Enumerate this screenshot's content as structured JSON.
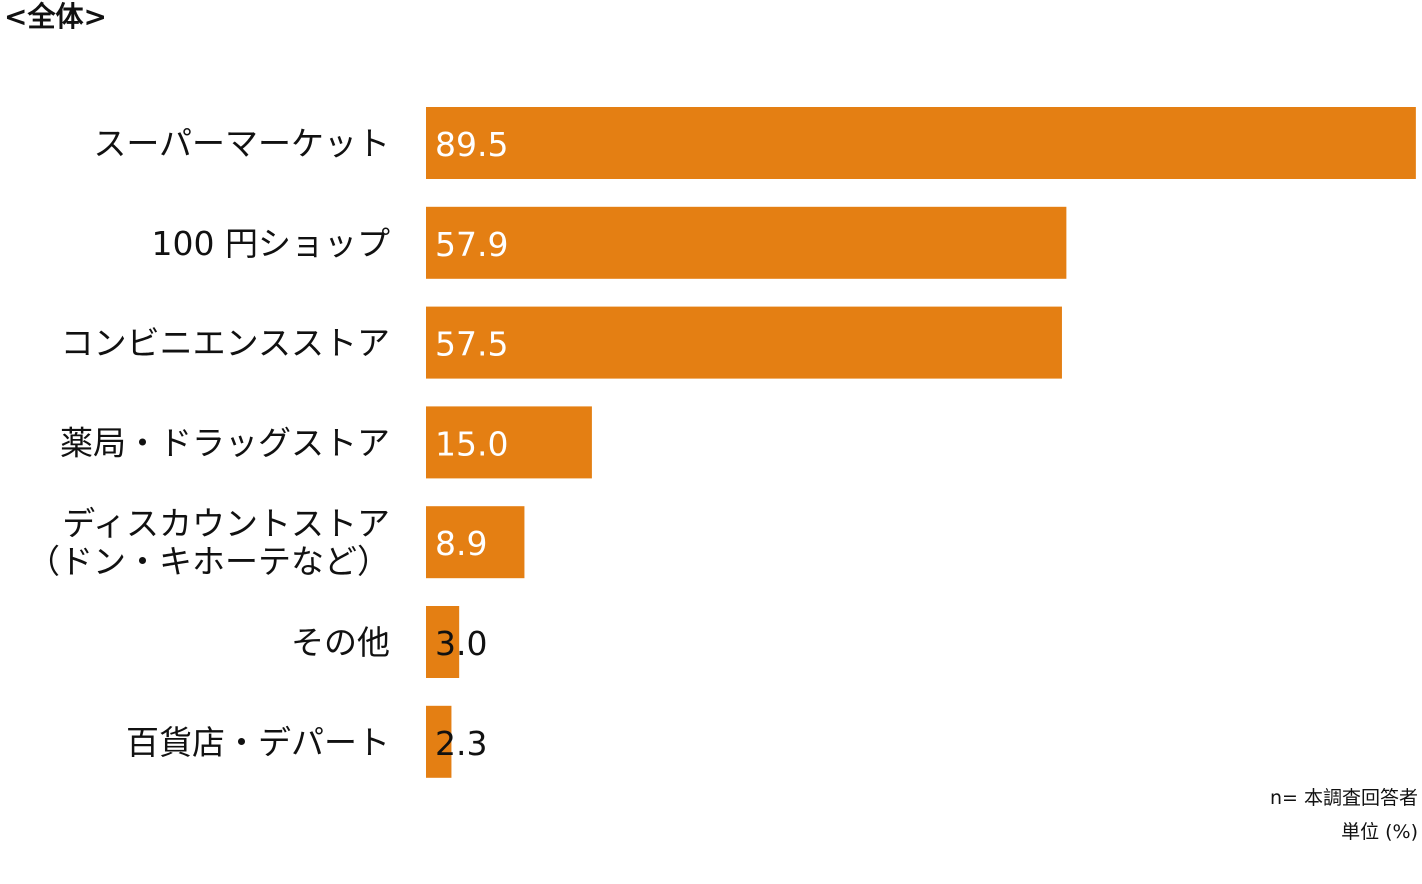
{
  "title": "<全体>",
  "notes": {
    "sample": "n= 本調査回答者",
    "unit": "単位 (%)"
  },
  "colors": {
    "bar": "#E47F13",
    "label_inside": "#ffffff",
    "label_outside": "#111111",
    "category_text": "#111111"
  },
  "chart_data": {
    "type": "bar",
    "orientation": "horizontal",
    "title": "<全体>",
    "xlabel": "",
    "ylabel": "",
    "unit": "%",
    "xlim": [
      0,
      90
    ],
    "grid": false,
    "legend": "none",
    "categories": [
      "スーパーマーケット",
      "100 円ショップ",
      "コンビニエンスストア",
      "薬局・ドラッグストア",
      "ディスカウントストア\n（ドン・キホーテなど）",
      "その他",
      "百貨店・デパート"
    ],
    "values": [
      89.5,
      57.9,
      57.5,
      15.0,
      8.9,
      3.0,
      2.3
    ],
    "value_labels": [
      "89.5",
      "57.9",
      "57.5",
      "15.0",
      "8.9",
      "3.0",
      "2.3"
    ]
  }
}
